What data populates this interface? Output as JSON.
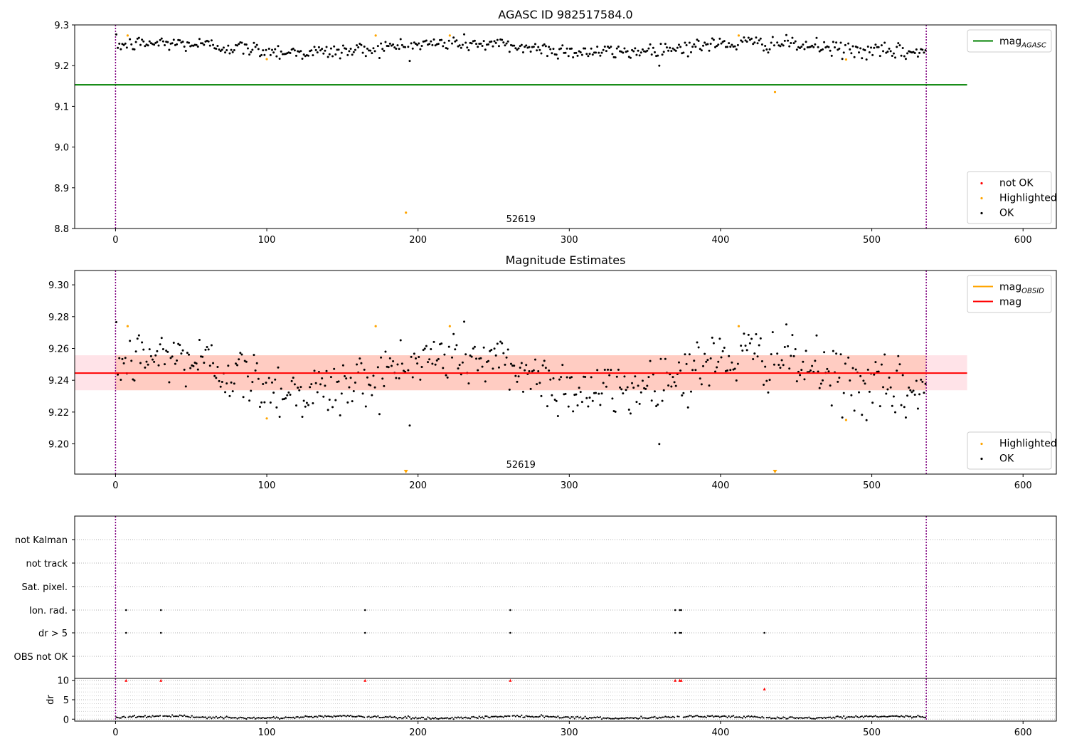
{
  "chart_data": [
    {
      "type": "scatter",
      "title": "AGASC ID 982517584.0",
      "annotation": "52619",
      "xlim": [
        -27,
        622
      ],
      "ylim": [
        8.8,
        9.3
      ],
      "xticks": [
        0,
        100,
        200,
        300,
        400,
        500,
        600
      ],
      "yticks": [
        8.8,
        8.9,
        9.0,
        9.1,
        9.2,
        9.3
      ],
      "ytick_labels": [
        "8.8",
        "8.9",
        "9.0",
        "9.1",
        "9.2",
        "9.3"
      ],
      "vlines": [
        0,
        536
      ],
      "lines": [
        {
          "name": "mag_AGASC",
          "y": 9.153,
          "x_range": [
            -27,
            563
          ],
          "color": "#008000"
        }
      ],
      "ok_series": {
        "name": "OK",
        "n": 536,
        "center": 9.244,
        "amp": 0.011,
        "jitter": 0.0095,
        "color": "#000000"
      },
      "highlighted": {
        "name": "Highlighted",
        "color": "#ffa500",
        "points": [
          [
            8,
            9.274
          ],
          [
            100,
            9.216
          ],
          [
            172,
            9.274
          ],
          [
            192,
            8.839
          ],
          [
            221,
            9.274
          ],
          [
            412,
            9.274
          ],
          [
            436,
            9.135
          ],
          [
            483,
            9.215
          ]
        ]
      },
      "legends": [
        {
          "position": "upper right",
          "entries": [
            {
              "label": "mag",
              "sub": "AGASC",
              "kind": "line",
              "color": "#008000"
            }
          ]
        },
        {
          "position": "lower right",
          "entries": [
            {
              "label": "not OK",
              "kind": "point",
              "color": "#ff0000"
            },
            {
              "label": "Highlighted",
              "kind": "point",
              "color": "#ffa500"
            },
            {
              "label": "OK",
              "kind": "point",
              "color": "#000000"
            }
          ]
        }
      ]
    },
    {
      "type": "scatter",
      "title": "Magnitude Estimates",
      "annotation": "52619",
      "xlim": [
        -27,
        622
      ],
      "ylim": [
        9.181,
        9.309
      ],
      "xticks": [
        0,
        100,
        200,
        300,
        400,
        500,
        600
      ],
      "yticks": [
        9.2,
        9.22,
        9.24,
        9.26,
        9.28,
        9.3
      ],
      "ytick_labels": [
        "9.20",
        "9.22",
        "9.24",
        "9.26",
        "9.28",
        "9.30"
      ],
      "vlines": [
        0,
        536
      ],
      "lines": [
        {
          "name": "mag",
          "y": 9.2445,
          "x_range": [
            -27,
            563
          ],
          "color": "#ff0000"
        }
      ],
      "bands": [
        {
          "y_range": [
            9.2337,
            9.2557
          ],
          "x_range": [
            -27,
            563
          ],
          "color": "#ffc0cb",
          "opacity": 0.45
        },
        {
          "y_range": [
            9.2337,
            9.2557
          ],
          "x_range": [
            0,
            536
          ],
          "color": "#ffa07a",
          "opacity": 0.35
        }
      ],
      "ok_series": {
        "name": "OK",
        "n": 536,
        "center": 9.244,
        "amp": 0.011,
        "jitter": 0.0095,
        "color": "#000000"
      },
      "highlighted": {
        "name": "Highlighted",
        "color": "#ffa500",
        "points": [
          [
            8,
            9.274
          ],
          [
            100,
            9.216
          ],
          [
            172,
            9.274
          ],
          [
            221,
            9.274
          ],
          [
            412,
            9.274
          ],
          [
            483,
            9.215
          ]
        ]
      },
      "offscale_markers": [
        {
          "x": 192,
          "color": "#ffa500"
        },
        {
          "x": 436,
          "color": "#ffa500"
        }
      ],
      "legends": [
        {
          "position": "upper right",
          "entries": [
            {
              "label": "mag",
              "sub": "OBSID",
              "kind": "line",
              "color": "#ffa500"
            },
            {
              "label": "mag",
              "kind": "line",
              "color": "#ff0000"
            }
          ]
        },
        {
          "position": "lower right",
          "entries": [
            {
              "label": "Highlighted",
              "kind": "point",
              "color": "#ffa500"
            },
            {
              "label": "OK",
              "kind": "point",
              "color": "#000000"
            }
          ]
        }
      ]
    },
    {
      "type": "scatter",
      "title": "",
      "xlim": [
        -27,
        622
      ],
      "vlines": [
        0,
        536
      ],
      "flag_rows": [
        "not Kalman",
        "not track",
        "Sat. pixel.",
        "Ion. rad.",
        "dr > 5",
        "OBS not OK"
      ],
      "flag_points": {
        "Ion. rad.": [
          7,
          30,
          165,
          261,
          370,
          373,
          374
        ],
        "dr > 5": [
          7,
          30,
          165,
          261,
          370,
          373,
          374,
          429
        ]
      }
    },
    {
      "type": "scatter",
      "title": "",
      "ylabel": "dr",
      "xlim": [
        -27,
        622
      ],
      "ylim": [
        -0.5,
        10.5
      ],
      "xticks": [
        0,
        100,
        200,
        300,
        400,
        500,
        600
      ],
      "yticks": [
        0,
        5,
        10
      ],
      "ytick_labels": [
        "0",
        "5",
        "10"
      ],
      "vlines": [
        0,
        536
      ],
      "dr_series": {
        "n": 536,
        "base": 0.5,
        "amp": 0.25,
        "jitter": 0.15,
        "color": "#000000"
      },
      "spikes": {
        "color": "#ff0000",
        "points": [
          [
            7,
            10
          ],
          [
            30,
            10
          ],
          [
            165,
            10
          ],
          [
            261,
            10
          ],
          [
            370,
            10
          ],
          [
            373,
            10
          ],
          [
            374,
            10
          ],
          [
            429,
            7.8
          ]
        ]
      }
    }
  ]
}
